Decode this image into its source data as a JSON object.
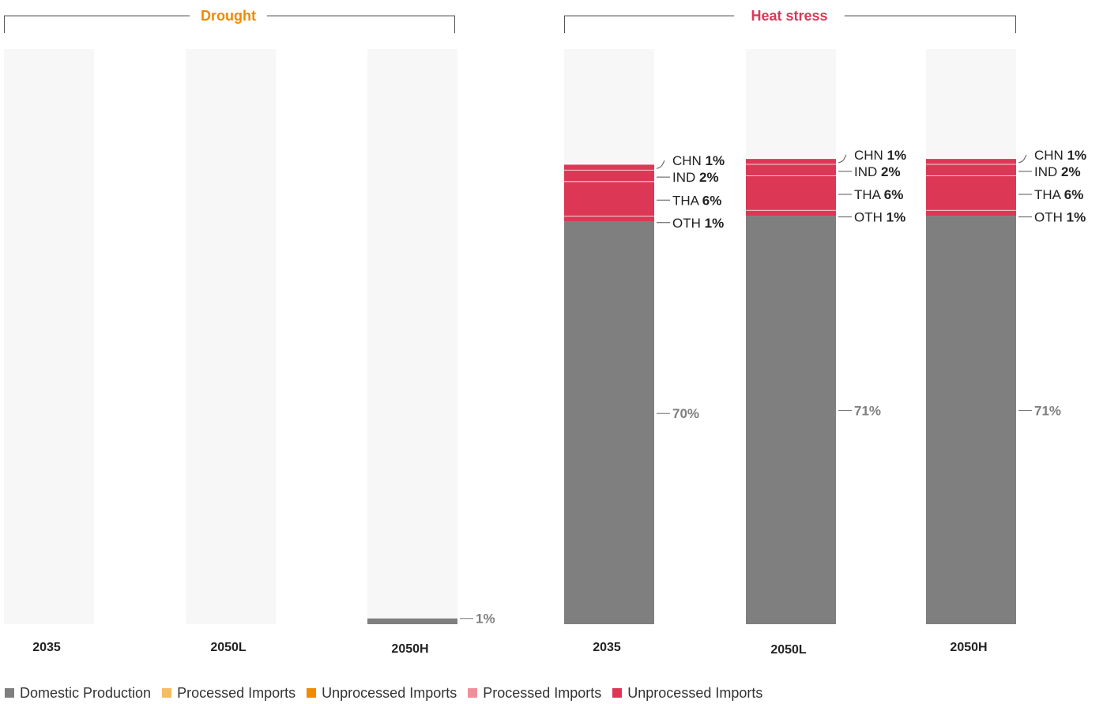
{
  "chart_data": {
    "type": "bar",
    "stacked": true,
    "scale_max": 100,
    "colors": {
      "background": "#f7f7f7",
      "domestic": "#7f7f7f",
      "processed_drought": "#f5bd63",
      "unprocessed_drought": "#f08a00",
      "processed_heat": "#f08f9c",
      "unprocessed_heat": "#dc3856",
      "drought_title": "#ef8a00",
      "heat_title": "#dc3856"
    },
    "groups": [
      {
        "name": "Drought",
        "categories": [
          {
            "label": "2035",
            "domestic": 0,
            "imports": []
          },
          {
            "label": "2050L",
            "domestic": 0,
            "imports": []
          },
          {
            "label": "2050H",
            "domestic": 1,
            "domestic_label": "1%",
            "imports": []
          }
        ]
      },
      {
        "name": "Heat stress",
        "categories": [
          {
            "label": "2035",
            "domestic": 70,
            "domestic_label": "70%",
            "imports": [
              {
                "code": "OTH",
                "value": 1,
                "text": "1%"
              },
              {
                "code": "THA",
                "value": 6,
                "text": "6%"
              },
              {
                "code": "IND",
                "value": 2,
                "text": "2%"
              },
              {
                "code": "CHN",
                "value": 1,
                "text": "1%"
              }
            ]
          },
          {
            "label": "2050L",
            "domestic": 71,
            "domestic_label": "71%",
            "imports": [
              {
                "code": "OTH",
                "value": 1,
                "text": "1%"
              },
              {
                "code": "THA",
                "value": 6,
                "text": "6%"
              },
              {
                "code": "IND",
                "value": 2,
                "text": "2%"
              },
              {
                "code": "CHN",
                "value": 1,
                "text": "1%"
              }
            ]
          },
          {
            "label": "2050H",
            "domestic": 71,
            "domestic_label": "71%",
            "imports": [
              {
                "code": "OTH",
                "value": 1,
                "text": "1%"
              },
              {
                "code": "THA",
                "value": 6,
                "text": "6%"
              },
              {
                "code": "IND",
                "value": 2,
                "text": "2%"
              },
              {
                "code": "CHN",
                "value": 1,
                "text": "1%"
              }
            ]
          }
        ]
      }
    ],
    "legend": [
      {
        "label": "Domestic Production",
        "color": "#7f7f7f"
      },
      {
        "label": "Processed Imports",
        "color": "#f5bd63"
      },
      {
        "label": "Unprocessed Imports",
        "color": "#f08a00"
      },
      {
        "label": "Processed Imports",
        "color": "#f08f9c"
      },
      {
        "label": "Unprocessed Imports",
        "color": "#dc3856"
      }
    ]
  }
}
